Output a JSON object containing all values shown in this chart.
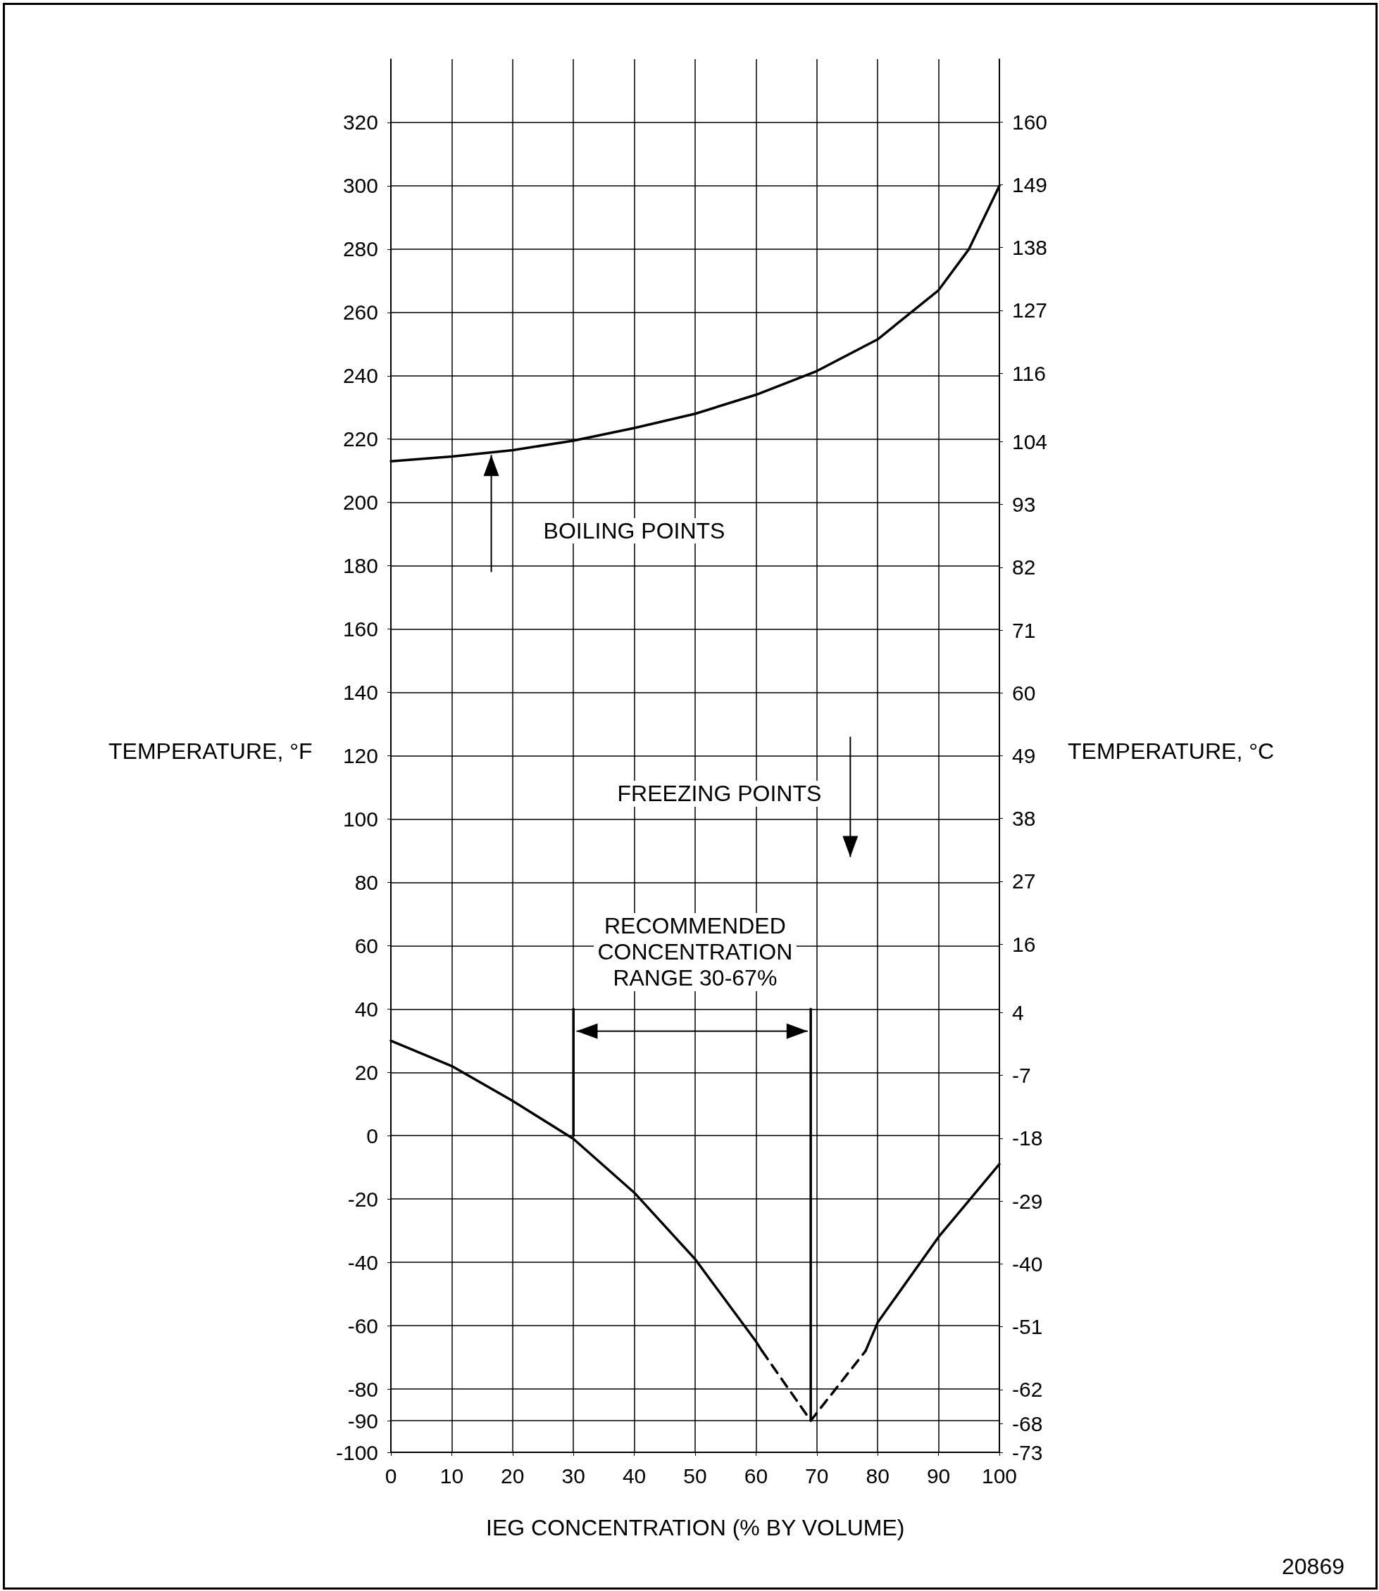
{
  "chart_data": {
    "type": "line",
    "xlabel": "IEG CONCENTRATION (% BY VOLUME)",
    "ylabel": "TEMPERATURE, °F",
    "y2label": "TEMPERATURE, °C",
    "xlim": [
      0,
      100
    ],
    "xticks": [
      0,
      10,
      20,
      30,
      40,
      50,
      60,
      70,
      80,
      90,
      100
    ],
    "ylim": [
      -100,
      340
    ],
    "yticks": [
      -100,
      -90,
      -80,
      -60,
      -40,
      -20,
      0,
      20,
      40,
      60,
      80,
      100,
      120,
      140,
      160,
      180,
      200,
      220,
      240,
      260,
      280,
      300,
      320
    ],
    "y2lim": [
      -73,
      171
    ],
    "y2ticks": [
      -73,
      -68,
      -62,
      -51,
      -40,
      -29,
      -18,
      -7,
      4,
      16,
      27,
      38,
      49,
      60,
      71,
      82,
      93,
      104,
      116,
      127,
      138,
      149,
      160
    ],
    "grid": true,
    "marker": "none",
    "series": [
      {
        "color": "#000000",
        "line_style": "solid",
        "x": [
          0,
          10,
          20,
          30,
          40,
          50,
          60,
          70,
          80,
          90,
          95,
          100
        ],
        "values": [
          213,
          214.5,
          216.5,
          219.5,
          223.5,
          228,
          234,
          241.5,
          251.5,
          267,
          280,
          300
        ]
      },
      {
        "color": "#000000",
        "line_style": "solid",
        "x": [
          0,
          10,
          20,
          30,
          40,
          50,
          60,
          61
        ],
        "values": [
          30,
          22,
          11,
          -1,
          -18,
          -39,
          -65,
          -68
        ]
      },
      {
        "color": "#000000",
        "line_style": "dashed",
        "x": [
          61,
          69,
          78
        ],
        "values": [
          -68,
          -90,
          -68
        ]
      },
      {
        "color": "#000000",
        "line_style": "solid",
        "x": [
          78,
          80,
          90,
          100
        ],
        "values": [
          -68,
          -59,
          -32,
          -9
        ]
      },
      {
        "color": "#000000",
        "line_style": "solid",
        "x": [
          30,
          30
        ],
        "values": [
          0,
          40
        ]
      },
      {
        "color": "#000000",
        "line_style": "solid",
        "x": [
          69,
          69
        ],
        "values": [
          -90,
          40
        ]
      }
    ],
    "annotations": [
      "BOILING POINTS",
      "FREEZING POINTS",
      "RECOMMENDED\nCONCENTRATION\nRANGE 30-67%",
      "20869"
    ]
  }
}
